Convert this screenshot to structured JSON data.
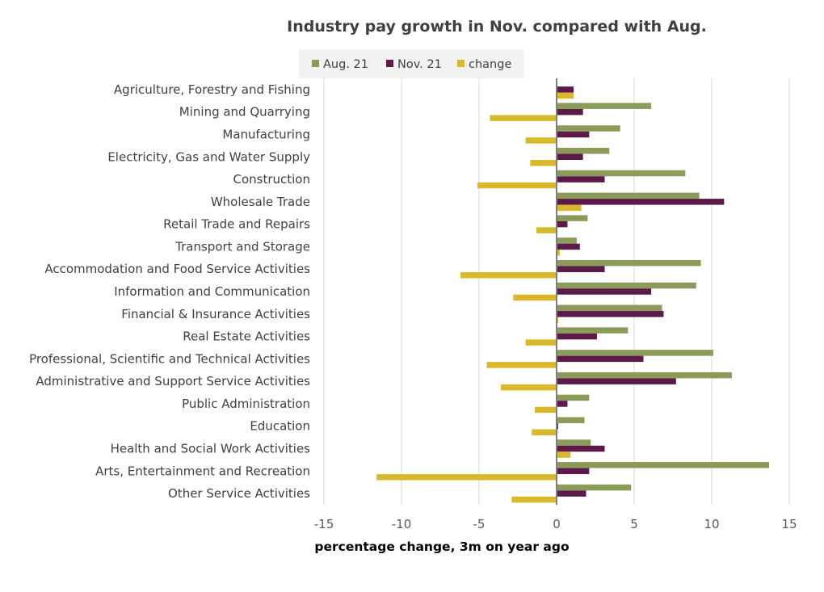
{
  "chart_data": {
    "type": "bar",
    "orientation": "horizontal",
    "title": "Industry pay growth in Nov. compared with Aug.",
    "xlabel": "percentage change, 3m on year ago",
    "ylabel": "",
    "xlim": [
      -15,
      15
    ],
    "xticks": [
      "-15",
      "-10",
      "-5",
      "0",
      "5",
      "10",
      "15"
    ],
    "grid": true,
    "legend_position": "top-left",
    "categories": [
      "Agriculture, Forestry and Fishing",
      "Mining and Quarrying",
      "Manufacturing",
      "Electricity, Gas and Water Supply",
      "Construction",
      "Wholesale Trade",
      "Retail Trade and Repairs",
      "Transport and Storage",
      "Accommodation and Food Service Activities",
      "Information and Communication",
      "Financial & Insurance Activities",
      "Real Estate Activities",
      "Professional, Scientific and Technical Activities",
      "Administrative and Support Service Activities",
      "Public Administration",
      "Education",
      "Health and Social Work Activities",
      "Arts, Entertainment and Recreation",
      "Other Service Activities"
    ],
    "series": [
      {
        "name": "Aug. 21",
        "color": "#8b9c5a",
        "values": [
          0.0,
          6.1,
          4.1,
          3.4,
          8.3,
          9.2,
          2.0,
          1.3,
          9.3,
          9.0,
          6.8,
          4.6,
          10.1,
          11.3,
          2.1,
          1.8,
          2.2,
          13.7,
          4.8
        ]
      },
      {
        "name": "Nov. 21",
        "color": "#5c1a48",
        "values": [
          1.1,
          1.7,
          2.1,
          1.7,
          3.1,
          10.8,
          0.7,
          1.5,
          3.1,
          6.1,
          6.9,
          2.6,
          5.6,
          7.7,
          0.7,
          0.1,
          3.1,
          2.1,
          1.9
        ]
      },
      {
        "name": "change",
        "color": "#d9b92a",
        "values": [
          1.1,
          -4.3,
          -2.0,
          -1.7,
          -5.1,
          1.6,
          -1.3,
          0.2,
          -6.2,
          -2.8,
          0.1,
          -2.0,
          -4.5,
          -3.6,
          -1.4,
          -1.6,
          0.9,
          -11.6,
          -2.9
        ]
      }
    ]
  }
}
